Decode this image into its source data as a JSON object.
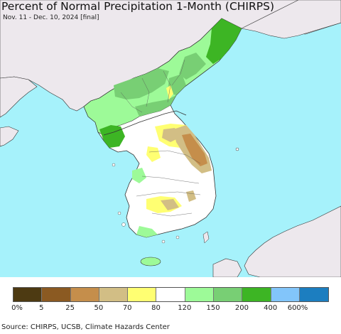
{
  "header": {
    "title": "Percent of Normal Precipitation 1-Month (CHIRPS)",
    "subtitle": "Nov. 11 - Dec. 10, 2024 [final]"
  },
  "legend": {
    "colors": [
      "#4d3a12",
      "#8b5a22",
      "#c58e4b",
      "#d2be85",
      "#ffff72",
      "#ffffff",
      "#9dfa98",
      "#78cf74",
      "#3db524",
      "#82c5fa",
      "#1c7ec0"
    ],
    "labels": [
      "0%",
      "5",
      "25",
      "50",
      "70",
      "80",
      "120",
      "150",
      "200",
      "400",
      "600%"
    ]
  },
  "footer": {
    "source": "Source: CHIRPS, UCSB, Climate Hazards Center"
  },
  "map": {
    "sea_color": "#a6f2fb",
    "land_outside_color": "#ede8ed"
  }
}
